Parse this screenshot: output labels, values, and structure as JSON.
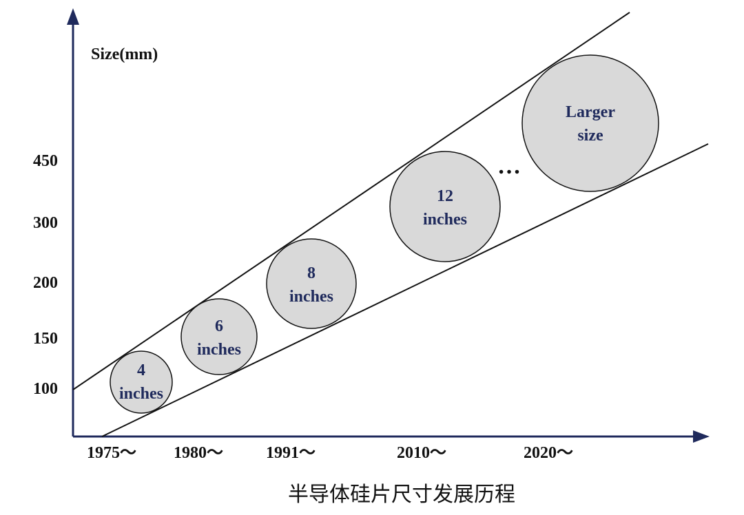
{
  "axes": {
    "y_label": "Size(mm)",
    "y_ticks": [
      "450",
      "300",
      "200",
      "150",
      "100"
    ],
    "x_ticks": [
      "1975～",
      "1980～",
      "1991～",
      "2010～",
      "2020～"
    ]
  },
  "wafers": [
    {
      "line1": "4",
      "line2": "inches"
    },
    {
      "line1": "6",
      "line2": "inches"
    },
    {
      "line1": "8",
      "line2": "inches"
    },
    {
      "line1": "12",
      "line2": "inches"
    },
    {
      "line1": "Larger",
      "line2": "size"
    }
  ],
  "ellipsis": "…",
  "caption": "半导体硅片尺寸发展历程",
  "colors": {
    "wafer_fill": "#d9d9d9",
    "wafer_text": "#1f2a5c",
    "axis": "#1f2a5c",
    "line": "#111111"
  }
}
